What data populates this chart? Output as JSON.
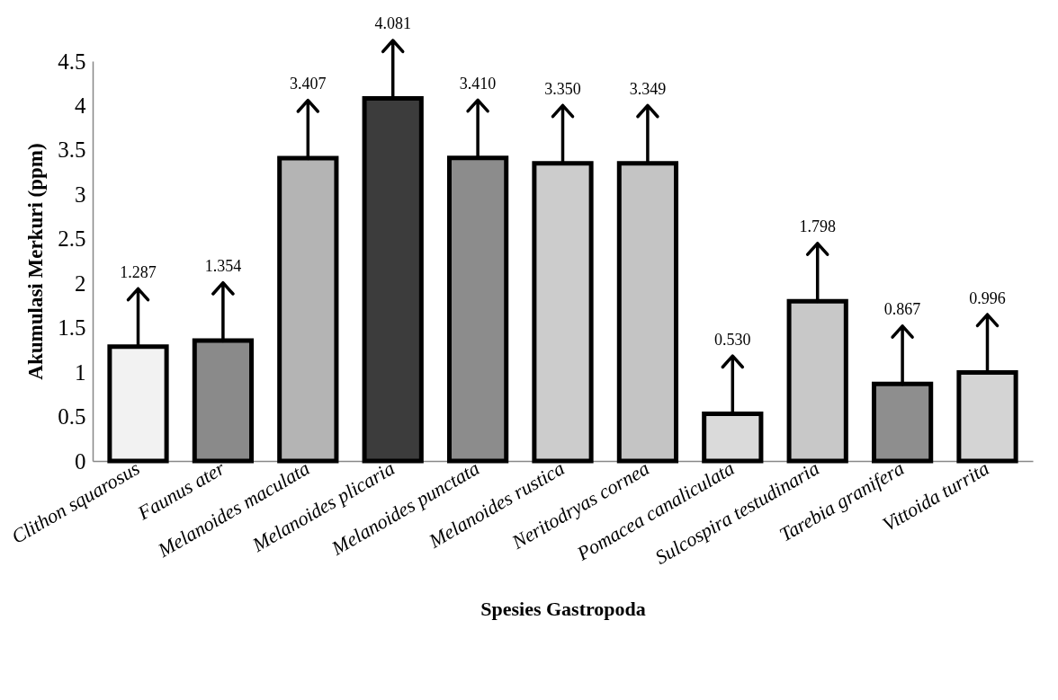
{
  "chart_data": {
    "type": "bar",
    "xlabel": "Spesies Gastropoda",
    "ylabel": "Akumulasi Merkuri (ppm)",
    "categories": [
      "Clithon squarosus",
      "Faunus ater",
      "Melanoides maculata",
      "Melanoides plicaria",
      "Melanoides punctata",
      "Melanoides rustica",
      "Neritodryas cornea",
      "Pomacea canaliculata",
      "Sulcospira testudinaria",
      "Tarebia granifera",
      "Vittoida turrita"
    ],
    "values": [
      1.287,
      1.354,
      3.407,
      4.081,
      3.41,
      3.35,
      3.349,
      0.53,
      1.798,
      0.867,
      0.996
    ],
    "value_labels": [
      "1.287",
      "1.354",
      "3.407",
      "4.081",
      "3.410",
      "3.350",
      "3.349",
      "0.530",
      "1.798",
      "0.867",
      "0.996"
    ],
    "colors": [
      "#f2f2f2",
      "#8a8a8a",
      "#b4b4b4",
      "#3c3c3c",
      "#8c8c8c",
      "#cccccc",
      "#c4c4c4",
      "#dadada",
      "#c8c8c8",
      "#8e8e8e",
      "#d4d4d4"
    ],
    "ylim": [
      0,
      4.5
    ],
    "yticks": [
      0,
      0.5,
      1,
      1.5,
      2,
      2.5,
      3,
      3.5,
      4,
      4.5
    ],
    "grid": false,
    "legend": false
  }
}
